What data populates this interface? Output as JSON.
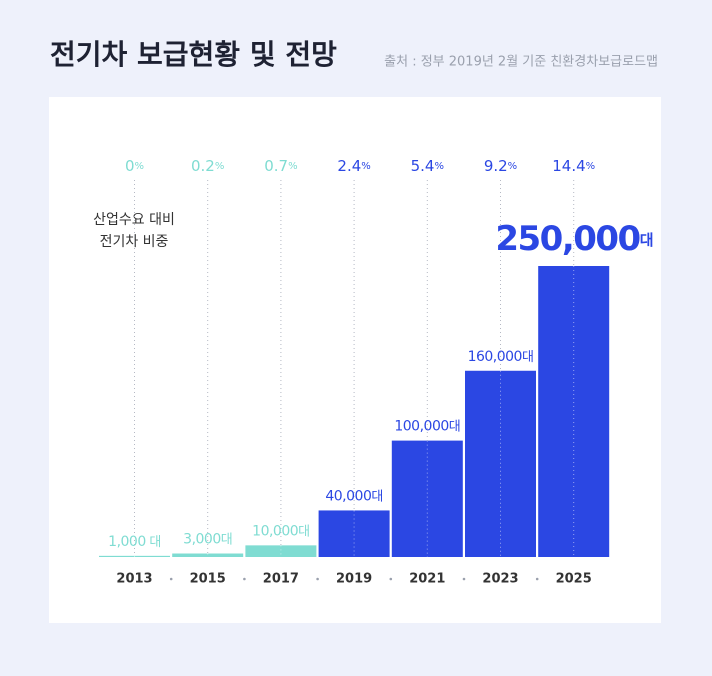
{
  "chart_data": {
    "type": "bar",
    "title": "전기차 보급현황 및 전망",
    "source": "출처 : 정부 2019년 2월 기준 친환경차보급로드맵",
    "categories": [
      "2013",
      "2015",
      "2017",
      "2019",
      "2021",
      "2023",
      "2025"
    ],
    "values": [
      1000,
      3000,
      10000,
      40000,
      100000,
      160000,
      250000
    ],
    "value_labels": [
      "1,000 대",
      "3,000대",
      "10,000대",
      "40,000대",
      "100,000대",
      "160,000대",
      "250,000대"
    ],
    "colors": [
      "#7fdcd2",
      "#7fdcd2",
      "#7fdcd2",
      "#2b47e3",
      "#2b47e3",
      "#2b47e3",
      "#2b47e3"
    ],
    "share_title": [
      "산업수요 대비",
      "전기차 비중"
    ],
    "share_values": [
      0,
      0.2,
      0.7,
      2.4,
      5.4,
      9.2,
      14.4
    ],
    "share_labels": [
      "0%",
      "0.2%",
      "0.7%",
      "2.4%",
      "5.4%",
      "9.2%",
      "14.4%"
    ]
  }
}
